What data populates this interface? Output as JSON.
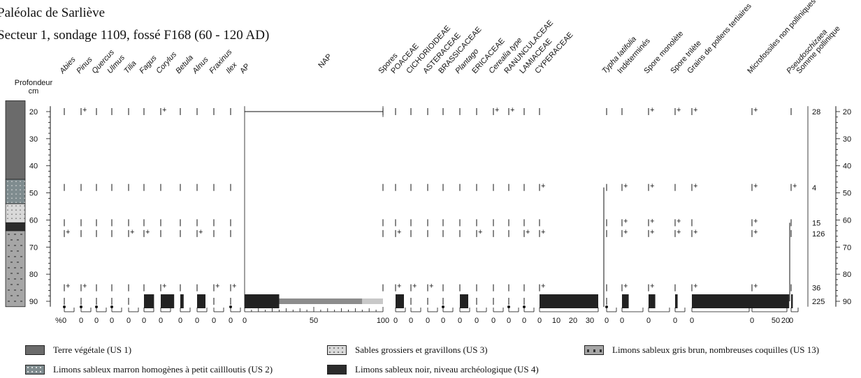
{
  "title": {
    "line1": "Paléolac de Sarliève",
    "line2": "Secteur 1, sondage 1109, fossé F168 (60 - 120 AD)"
  },
  "chart_data": {
    "type": "pollen-diagram",
    "depth_axis": {
      "label_line1": "Profondeur",
      "label_line2": "cm",
      "ticks": [
        "20",
        "30",
        "40",
        "50",
        "60",
        "70",
        "80",
        "90"
      ],
      "range": [
        20,
        90
      ]
    },
    "samples_depth": [
      20,
      48,
      61,
      65,
      85,
      90
    ],
    "percent_label": "%",
    "taxa": [
      {
        "name": "Abies",
        "italic": true,
        "group": "AP",
        "values": [
          0,
          0,
          0,
          0.5,
          0.5,
          0
        ]
      },
      {
        "name": "Pinus",
        "italic": true,
        "group": "AP",
        "values": [
          0.5,
          0,
          0,
          0,
          0.5,
          0
        ]
      },
      {
        "name": "Quercus",
        "italic": true,
        "group": "AP",
        "values": [
          0,
          0,
          0,
          0,
          0,
          0
        ]
      },
      {
        "name": "Ulmus",
        "italic": true,
        "group": "AP",
        "values": [
          0,
          0,
          0,
          0,
          0,
          0
        ]
      },
      {
        "name": "Tilia",
        "italic": true,
        "group": "AP",
        "values": [
          0,
          0,
          0,
          0.5,
          0,
          0
        ]
      },
      {
        "name": "Fagus",
        "italic": true,
        "group": "AP",
        "values": [
          0,
          0,
          0,
          0.5,
          0,
          6
        ]
      },
      {
        "name": "Corylus",
        "italic": true,
        "group": "AP",
        "values": [
          0.5,
          0,
          0,
          0,
          0.5,
          8
        ]
      },
      {
        "name": "Betula",
        "italic": true,
        "group": "AP",
        "values": [
          0,
          0,
          0,
          0,
          0,
          2
        ]
      },
      {
        "name": "Alnus",
        "italic": true,
        "group": "AP",
        "values": [
          0,
          0,
          0,
          0.5,
          0,
          5
        ]
      },
      {
        "name": "Fraxinus",
        "italic": true,
        "group": "AP",
        "values": [
          0,
          0,
          0,
          0,
          0.5,
          0
        ]
      },
      {
        "name": "Ilex",
        "italic": true,
        "group": "AP",
        "values": [
          0,
          0,
          0,
          0,
          0.5,
          0
        ]
      },
      {
        "name": "POACEAE",
        "italic": false,
        "group": "NAP",
        "values": [
          0,
          0,
          0,
          0.5,
          0.5,
          5
        ]
      },
      {
        "name": "CICHORIOIDEAE",
        "italic": false,
        "group": "NAP",
        "values": [
          0,
          0,
          0,
          0,
          0.5,
          0
        ]
      },
      {
        "name": "ASTERACEAE",
        "italic": false,
        "group": "NAP",
        "values": [
          0,
          0,
          0,
          0,
          0.5,
          0
        ]
      },
      {
        "name": "BRASSICACEAE",
        "italic": false,
        "group": "NAP",
        "values": [
          0,
          0,
          0,
          0,
          0,
          0
        ]
      },
      {
        "name": "Plantago",
        "italic": true,
        "group": "NAP",
        "values": [
          0,
          0,
          0,
          0,
          0,
          5
        ]
      },
      {
        "name": "ERICACEAE",
        "italic": false,
        "group": "NAP",
        "values": [
          0,
          0,
          0,
          0.5,
          0,
          0
        ]
      },
      {
        "name": "Cerealia type",
        "italic": true,
        "group": "NAP",
        "values": [
          0.5,
          0,
          0,
          0,
          0,
          0
        ]
      },
      {
        "name": "RANUNCULACEAE",
        "italic": false,
        "group": "NAP",
        "values": [
          0.5,
          0,
          0,
          0,
          0,
          0
        ]
      },
      {
        "name": "LAMIACEAE",
        "italic": false,
        "group": "NAP",
        "values": [
          0,
          0,
          0,
          0.5,
          0,
          0
        ]
      },
      {
        "name": "CYPERACEAE",
        "italic": false,
        "group": "NAP",
        "values": [
          0,
          0.5,
          0,
          0.5,
          0.5,
          35
        ]
      }
    ],
    "summary": {
      "labels": [
        "AP",
        "NAP",
        "Spores"
      ],
      "axis_ticks": [
        "0",
        "50",
        "100"
      ],
      "ap": [
        0,
        0,
        0,
        0,
        0,
        25
      ],
      "nap": [
        0,
        0,
        0,
        0,
        0,
        60
      ],
      "spores": [
        0,
        0,
        0,
        0,
        0,
        15
      ]
    },
    "other_columns": [
      {
        "name": "Typha latifolia",
        "italic": true,
        "values": [
          0,
          0,
          0,
          0,
          0,
          0
        ],
        "ticks": [
          "0"
        ]
      },
      {
        "name": "Indéterminés",
        "italic": false,
        "values": [
          0,
          0.5,
          0.5,
          0.5,
          0.5,
          4
        ],
        "ticks": [
          "0"
        ]
      },
      {
        "name": "Spore monolète",
        "italic": false,
        "values": [
          0.5,
          0.5,
          0.5,
          0.5,
          0.5,
          4
        ],
        "ticks": [
          "0"
        ]
      },
      {
        "name": "Spore trilète",
        "italic": false,
        "values": [
          0.5,
          0,
          0.5,
          0.5,
          0,
          1.5
        ],
        "ticks": [
          "0"
        ]
      },
      {
        "name": "Grains de pollens tertiaires",
        "italic": false,
        "values": [
          0.5,
          0.5,
          0,
          0.5,
          0.5,
          58
        ],
        "ticks": [
          "0",
          "50"
        ]
      },
      {
        "name": "Microfossiles non polliniques",
        "italic": false,
        "values": [
          0.5,
          0.5,
          0.5,
          0.5,
          0.5,
          20
        ],
        "ticks": [
          "0",
          "20"
        ]
      },
      {
        "name": "Pseudoschizaea",
        "italic": true,
        "values": [
          0,
          0.5,
          0,
          0,
          0,
          1
        ],
        "ticks": [
          "0"
        ]
      }
    ],
    "pollen_sum": {
      "label": "Somme pollinique",
      "entries": [
        {
          "depth": 20,
          "value": "28"
        },
        {
          "depth": 48,
          "value": "4"
        },
        {
          "depth": 61,
          "value": "15"
        },
        {
          "depth": 65,
          "value": "126"
        },
        {
          "depth": 85,
          "value": "36"
        },
        {
          "depth": 90,
          "value": "225"
        }
      ]
    }
  },
  "legend": [
    {
      "label": "Terre végétale (US 1)",
      "color": "#6b6b6b",
      "pattern": "solid"
    },
    {
      "label": "Limons sableux marron homogènes à petit caillloutis (US 2)",
      "color": "#7f8c8f",
      "pattern": "dots"
    },
    {
      "label": "Sables grossiers et gravillons (US 3)",
      "color": "#d9d9d9",
      "pattern": "dots"
    },
    {
      "label": "Limons sableux noir, niveau archéologique (US 4)",
      "color": "#2b2b2b",
      "pattern": "solid"
    },
    {
      "label": "Limons sableux gris brun, nombreuses coquilles (US 13)",
      "color": "#a6a6a6",
      "pattern": "dashes"
    }
  ]
}
